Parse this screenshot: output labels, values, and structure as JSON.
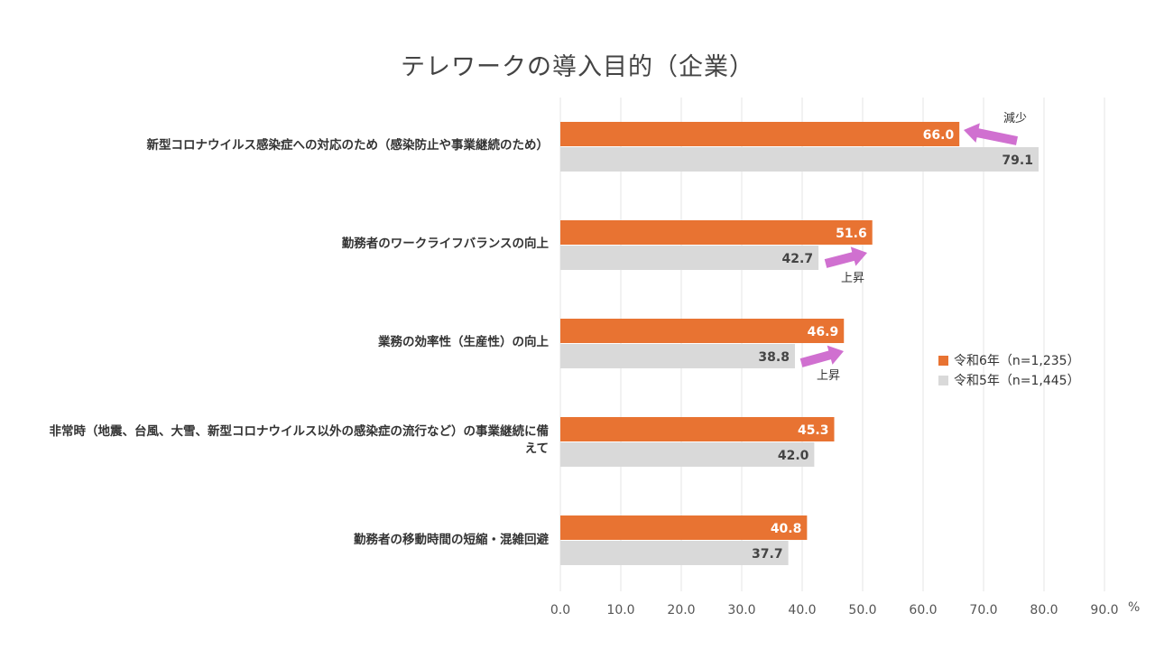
{
  "chart_data": {
    "type": "bar",
    "orientation": "horizontal",
    "title": "テレワークの導入目的（企業）",
    "categories": [
      "新型コロナウイルス感染症への対応のため（感染防止や事業継続のため）",
      "勤務者のワークライフバランスの向上",
      "業務の効率性（生産性）の向上",
      "非常時（地震、台風、大雪、新型コロナウイルス以外の感染症の流行など）の事業継続に備えて",
      "勤務者の移動時間の短縮・混雑回避"
    ],
    "series": [
      {
        "name": "令和6年（n=1,235）",
        "color": "#E87332",
        "values": [
          66.0,
          51.6,
          46.9,
          45.3,
          40.8
        ],
        "labels": [
          "66.0",
          "51.6",
          "46.9",
          "45.3",
          "40.8"
        ]
      },
      {
        "name": "令和5年（n=1,445）",
        "color": "#D9D9D9",
        "values": [
          79.1,
          42.7,
          38.8,
          42.0,
          37.7
        ],
        "labels": [
          "79.1",
          "42.7",
          "38.8",
          "42.0",
          "37.7"
        ]
      }
    ],
    "xlim": [
      0,
      90
    ],
    "xticks": [
      "0.0",
      "10.0",
      "20.0",
      "30.0",
      "40.0",
      "50.0",
      "60.0",
      "70.0",
      "80.0",
      "90.0"
    ],
    "xunit": "%",
    "legend_position": "right",
    "grid": true,
    "annotations": [
      {
        "text": "減少",
        "category_index": 0,
        "direction": "left",
        "color": "#D070D0"
      },
      {
        "text": "上昇",
        "category_index": 1,
        "direction": "right",
        "color": "#D070D0"
      },
      {
        "text": "上昇",
        "category_index": 2,
        "direction": "right",
        "color": "#D070D0"
      }
    ]
  }
}
